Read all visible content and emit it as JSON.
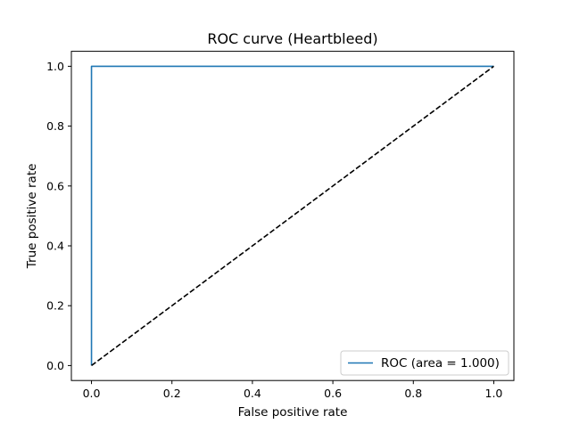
{
  "chart_data": {
    "type": "line",
    "title": "ROC curve (Heartbleed)",
    "xlabel": "False positive rate",
    "ylabel": "True positive rate",
    "xlim": [
      -0.05,
      1.05
    ],
    "ylim": [
      -0.05,
      1.05
    ],
    "xticks": [
      0.0,
      0.2,
      0.4,
      0.6,
      0.8,
      1.0
    ],
    "yticks": [
      0.0,
      0.2,
      0.4,
      0.6,
      0.8,
      1.0
    ],
    "xtick_labels": [
      "0.0",
      "0.2",
      "0.4",
      "0.6",
      "0.8",
      "1.0"
    ],
    "ytick_labels": [
      "0.0",
      "0.2",
      "0.4",
      "0.6",
      "0.8",
      "1.0"
    ],
    "grid": false,
    "legend_position": "lower-right",
    "series": [
      {
        "name": "ROC (area = 1.000)",
        "color": "#1f77b4",
        "style": "solid",
        "x": [
          0.0,
          0.0,
          1.0
        ],
        "y": [
          0.0,
          1.0,
          1.0
        ]
      },
      {
        "color": "#000000",
        "style": "dashed",
        "x": [
          0.0,
          1.0
        ],
        "y": [
          0.0,
          1.0
        ]
      }
    ]
  }
}
